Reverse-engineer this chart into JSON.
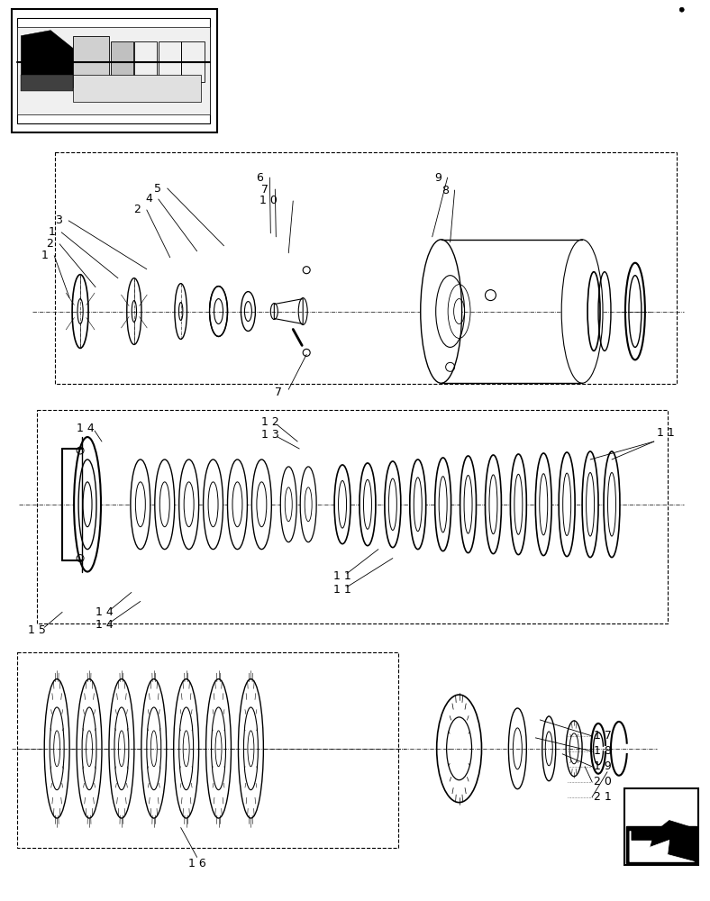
{
  "bg_color": "#ffffff",
  "line_color": "#000000",
  "figsize": [
    7.88,
    10.0
  ],
  "dpi": 100
}
